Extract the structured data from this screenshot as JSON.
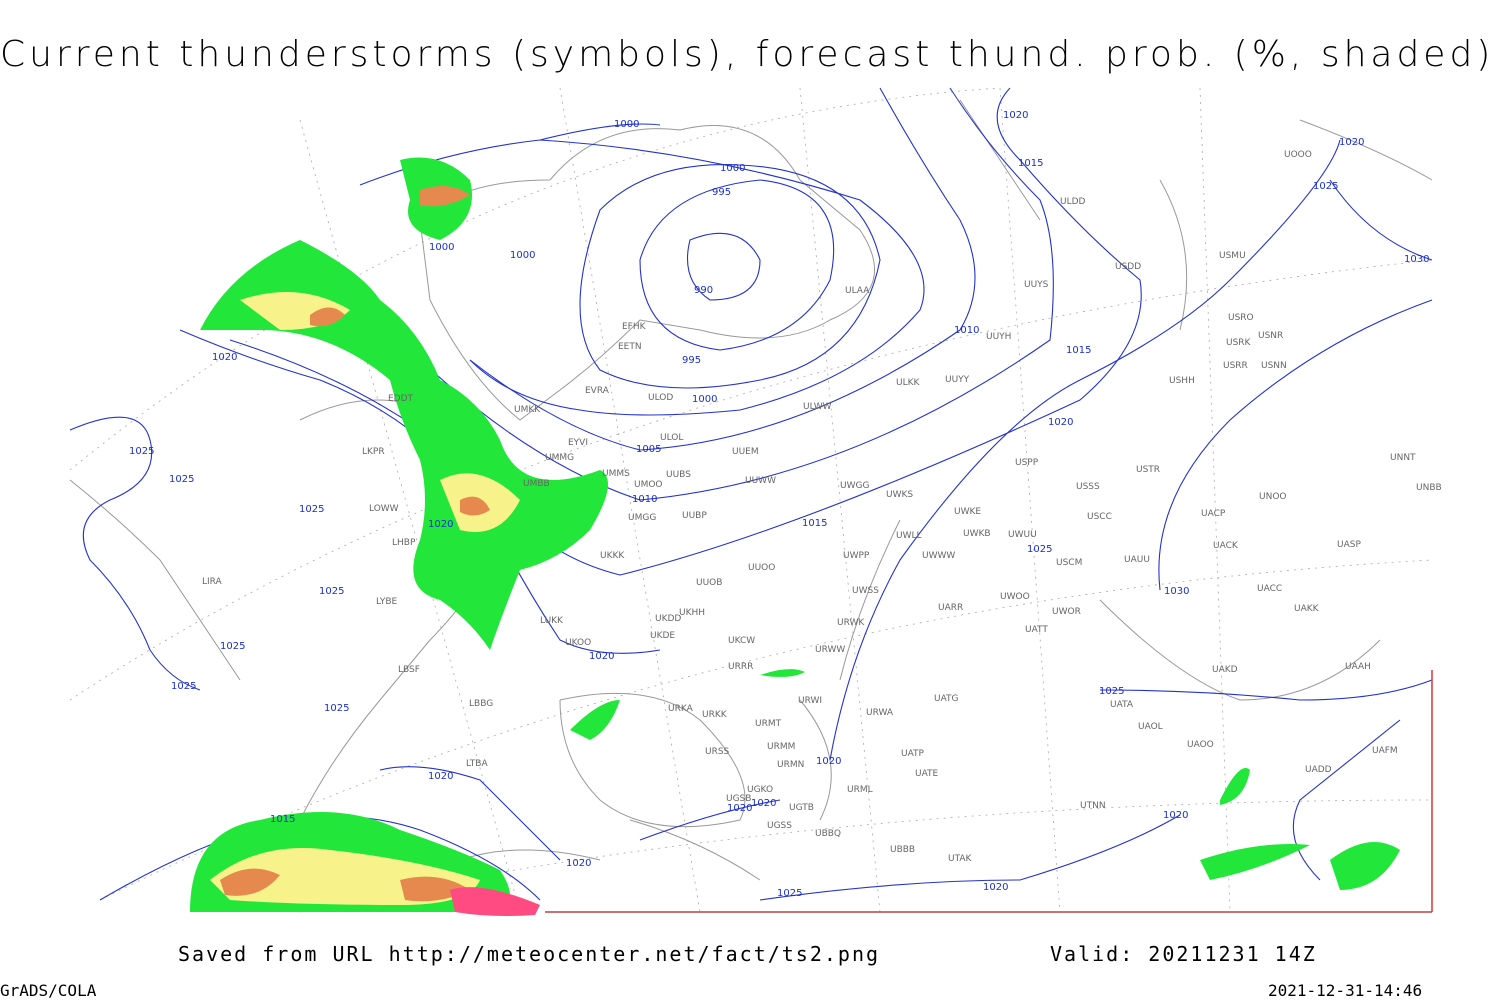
{
  "header": {
    "title": "Current thunderstorms (symbols), forecast thund. prob. (%, shaded)"
  },
  "footer": {
    "saved": "Saved from URL http://meteocenter.net/fact/ts2.png",
    "valid": "Valid: 20211231 14Z",
    "software": "GrADS/COLA",
    "timestamp": "2021-12-31-14:46"
  },
  "map": {
    "isobar_labels": [
      "1000",
      "1000",
      "995",
      "990",
      "995",
      "1000",
      "1005",
      "1010",
      "1015",
      "1010",
      "1015",
      "1020",
      "1020",
      "1015",
      "1020",
      "1025",
      "1030",
      "1030",
      "1025",
      "1020",
      "1025",
      "1025",
      "1025",
      "1020",
      "1025",
      "1025",
      "1025",
      "1025",
      "1020",
      "1020",
      "1015",
      "1020",
      "1020",
      "1020",
      "1020",
      "1025",
      "1020",
      "1020",
      "1025",
      "1000",
      "1000"
    ],
    "stations": [
      "EFHK",
      "EETN",
      "EVRA",
      "ULOD",
      "ULOL",
      "UMKK",
      "EYVI",
      "UMMG",
      "UMMS",
      "UMOO",
      "UUBS",
      "UMBB",
      "UMGG",
      "UUBP",
      "UKKK",
      "UUOO",
      "UUOB",
      "UKHH",
      "UKDD",
      "UKDE",
      "UKOO",
      "LUKK",
      "UKCW",
      "URRR",
      "URWI",
      "URKA",
      "URKK",
      "URMT",
      "URMM",
      "URSS",
      "URMN",
      "UGKO",
      "UGSB",
      "UGTB",
      "UGSS",
      "UBBQ",
      "UBBB",
      "UUEM",
      "UUWW",
      "ULWW",
      "ULAA",
      "UUYS",
      "UUYH",
      "ULKK",
      "UUYY",
      "UWGG",
      "UWKS",
      "UWKE",
      "UWKB",
      "UWLL",
      "UWWW",
      "UWPP",
      "UWSS",
      "UWUU",
      "USPP",
      "USSS",
      "USTR",
      "USCC",
      "USCM",
      "UAUU",
      "UWOO",
      "UWOR",
      "UATT",
      "UARR",
      "URWW",
      "URWK",
      "UATG",
      "URWA",
      "UATP",
      "UATE",
      "URML",
      "UTAK",
      "UTNN",
      "UATA",
      "UAOL",
      "UAOO",
      "UAKD",
      "UACC",
      "UAKK",
      "UACK",
      "UACP",
      "UASP",
      "UNOO",
      "UNNT",
      "UNBB",
      "UAAH",
      "UADD",
      "UAFM",
      "USHH",
      "USRR",
      "USNN",
      "USRK",
      "USNR",
      "USRO",
      "USMU",
      "USDD",
      "ULDD",
      "UOOO",
      "EDDT",
      "LKPR",
      "LOWW",
      "LHBP",
      "LIRA",
      "LYBE",
      "LBSF",
      "LBBG",
      "LTBA"
    ]
  }
}
